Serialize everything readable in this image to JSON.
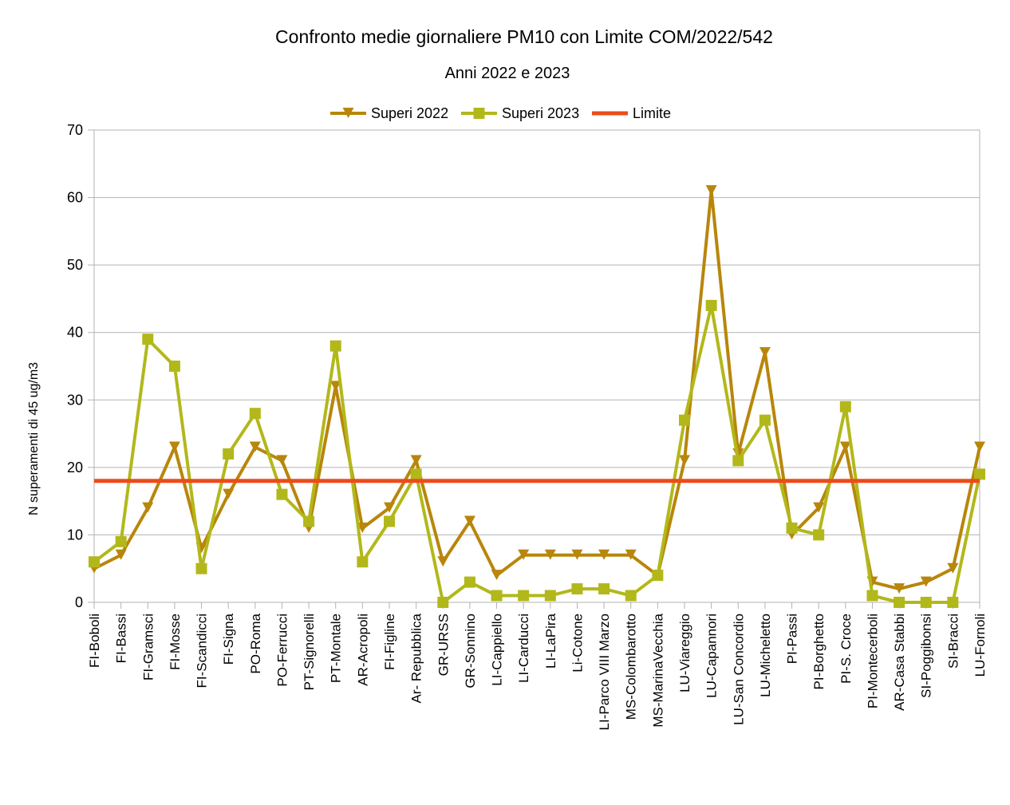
{
  "chart_data": {
    "type": "line",
    "title": "Confronto medie giornaliere PM10 con Limite  COM/2022/542",
    "subtitle": "Anni 2022 e 2023",
    "xlabel": "",
    "ylabel": "N superamenti di 45 ug/m3",
    "ylim": [
      0,
      70
    ],
    "yticks": [
      0,
      10,
      20,
      30,
      40,
      50,
      60,
      70
    ],
    "grid": true,
    "legend_position": "top",
    "categories": [
      "FI-Boboli",
      "FI-Bassi",
      "FI-Gramsci",
      "FI-Mosse",
      "FI-Scandicci",
      "FI-Signa",
      "PO-Roma",
      "PO-Ferrucci",
      "PT-Signorelli",
      "PT-Montale",
      "AR-Acropoli",
      "FI-Figline",
      "Ar- Repubblica",
      "GR-URSS",
      "GR-Sonnino",
      "LI-Cappiello",
      "LI-Carducci",
      "LI-LaPira",
      "Li-Cotone",
      "LI-Parco VIII Marzo",
      "MS-Colombarotto",
      "MS-MarinaVecchia",
      "LU-Viareggio",
      "LU-Capannori",
      "LU-San Concordio",
      "LU-Micheletto",
      "PI-Passi",
      "PI-Borghetto",
      "PI-S. Croce",
      "PI-Montecerboli",
      "AR-Casa Stabbi",
      "SI-Poggibonsi",
      "SI-Bracci",
      "LU-Fornoli"
    ],
    "series": [
      {
        "name": "Superi 2022",
        "color": "#b8860b",
        "marker": "triangle-down",
        "values": [
          5,
          7,
          14,
          23,
          8,
          16,
          23,
          21,
          11,
          32,
          11,
          14,
          21,
          6,
          12,
          4,
          7,
          7,
          7,
          7,
          7,
          4,
          21,
          61,
          22,
          37,
          10,
          14,
          23,
          3,
          2,
          3,
          5,
          23
        ]
      },
      {
        "name": "Superi 2023",
        "color": "#b3b81a",
        "marker": "square",
        "values": [
          6,
          9,
          39,
          35,
          5,
          22,
          28,
          16,
          12,
          38,
          6,
          12,
          19,
          0,
          3,
          1,
          1,
          1,
          2,
          2,
          1,
          4,
          27,
          44,
          21,
          27,
          11,
          10,
          29,
          1,
          0,
          0,
          0,
          19
        ]
      },
      {
        "name": "Limite",
        "color": "#ee4b1b",
        "marker": "none",
        "values": [
          18,
          18,
          18,
          18,
          18,
          18,
          18,
          18,
          18,
          18,
          18,
          18,
          18,
          18,
          18,
          18,
          18,
          18,
          18,
          18,
          18,
          18,
          18,
          18,
          18,
          18,
          18,
          18,
          18,
          18,
          18,
          18,
          18,
          18
        ]
      }
    ]
  }
}
